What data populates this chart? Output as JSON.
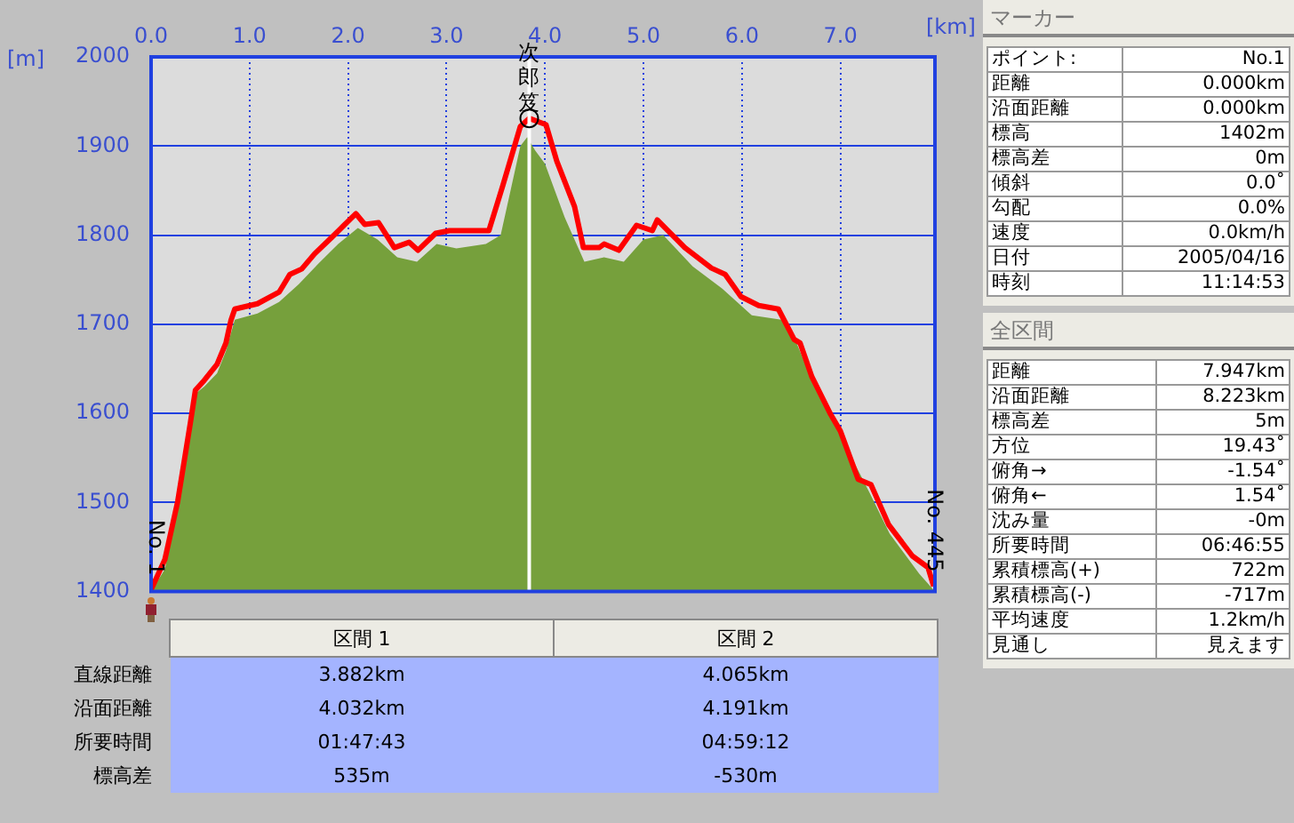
{
  "chart_data": [
    {
      "type": "line",
      "xlabel": "[km]",
      "ylabel": "[m]",
      "xlim": [
        0,
        7.96
      ],
      "ylim": [
        1400,
        2000
      ],
      "xticks": [
        {
          "value": 0,
          "label": "0.0"
        },
        {
          "value": 1,
          "label": "1.0"
        },
        {
          "value": 2,
          "label": "2.0"
        },
        {
          "value": 3,
          "label": "3.0"
        },
        {
          "value": 4,
          "label": "4.0"
        },
        {
          "value": 5,
          "label": "5.0"
        },
        {
          "value": 6,
          "label": "6.0"
        },
        {
          "value": 7,
          "label": "7.0"
        }
      ],
      "yticks": [
        1400,
        1500,
        1600,
        1700,
        1800,
        1900,
        2000
      ],
      "grid": true,
      "legend": false,
      "marker": "none",
      "series": [
        {
          "type": "area",
          "color": "#76a03c",
          "x": [
            0,
            0.14,
            0.27,
            0.4,
            0.45,
            0.54,
            0.67,
            0.76,
            0.85,
            1.08,
            1.3,
            1.5,
            1.7,
            1.9,
            2.1,
            2.3,
            2.5,
            2.7,
            2.9,
            3.1,
            3.4,
            3.55,
            3.65,
            3.75,
            3.82,
            3.9,
            4.0,
            4.2,
            4.4,
            4.6,
            4.8,
            5.0,
            5.2,
            5.5,
            5.8,
            6.1,
            6.4,
            6.55,
            6.7,
            7.0,
            7.3,
            7.5,
            7.8,
            7.96
          ],
          "values": [
            1400,
            1425,
            1495,
            1585,
            1622,
            1630,
            1645,
            1670,
            1705,
            1712,
            1725,
            1745,
            1768,
            1790,
            1808,
            1795,
            1775,
            1770,
            1790,
            1785,
            1790,
            1800,
            1850,
            1900,
            1910,
            1895,
            1880,
            1820,
            1770,
            1775,
            1770,
            1795,
            1800,
            1765,
            1740,
            1710,
            1705,
            1680,
            1640,
            1575,
            1510,
            1465,
            1420,
            1400
          ]
        },
        {
          "type": "line",
          "color": "#ff0000",
          "x": [
            0,
            0.14,
            0.27,
            0.4,
            0.45,
            0.54,
            0.67,
            0.76,
            0.81,
            0.85,
            1.08,
            1.3,
            1.41,
            1.53,
            1.66,
            1.84,
            1.95,
            2.08,
            2.17,
            2.31,
            2.47,
            2.62,
            2.71,
            2.89,
            3.03,
            3.43,
            3.52,
            3.57,
            3.75,
            3.84,
            4.01,
            4.12,
            4.3,
            4.39,
            4.55,
            4.6,
            4.75,
            4.93,
            5.09,
            5.14,
            5.42,
            5.69,
            5.83,
            5.99,
            6.17,
            6.37,
            6.53,
            6.59,
            6.71,
            6.9,
            7.0,
            7.18,
            7.31,
            7.49,
            7.73,
            7.89,
            7.947
          ],
          "values": [
            1402,
            1436,
            1501,
            1590,
            1626,
            1637,
            1655,
            1679,
            1704,
            1717,
            1723,
            1736,
            1756,
            1762,
            1779,
            1798,
            1810,
            1824,
            1812,
            1814,
            1786,
            1792,
            1783,
            1802,
            1805,
            1805,
            1837,
            1855,
            1922,
            1931,
            1924,
            1883,
            1832,
            1786,
            1786,
            1790,
            1783,
            1811,
            1805,
            1817,
            1786,
            1763,
            1756,
            1731,
            1721,
            1717,
            1683,
            1679,
            1641,
            1599,
            1580,
            1526,
            1520,
            1475,
            1440,
            1427,
            1406
          ]
        }
      ],
      "ref_lines": [
        {
          "axis": "x",
          "value": 3.84,
          "color": "#ffffff"
        }
      ],
      "annotations": [
        {
          "text": "次郎笈",
          "x": 3.84,
          "y": 1931
        },
        {
          "text": "No. 1",
          "x": 0,
          "y": 1402
        },
        {
          "text": "No. 445",
          "x": 7.947,
          "y": 1406
        }
      ]
    },
    {
      "type": "other",
      "annotations": [
        "区間 1",
        "区間 2",
        "直線距離",
        "3.882km",
        "4.065km",
        "沿面距離",
        "4.032km",
        "4.191km",
        "所要時間",
        "01:47:43",
        "04:59:12",
        "標高差",
        "535m",
        "-530m"
      ]
    },
    {
      "type": "other",
      "title": "マーカー",
      "annotations": [
        "ポイント:",
        "No.1",
        "距離",
        "0.000km",
        "沿面距離",
        "0.000km",
        "標高",
        "1402m",
        "標高差",
        "0m",
        "傾斜",
        "0.0˚",
        "勾配",
        "0.0%",
        "速度",
        "0.0km/h",
        "日付",
        "2005/04/16",
        "時刻",
        "11:14:53"
      ]
    },
    {
      "type": "other",
      "title": "全区間",
      "annotations": [
        "距離",
        "7.947km",
        "沿面距離",
        "8.223km",
        "標高差",
        "5m",
        "方位",
        "19.43˚",
        "俯角→",
        "-1.54˚",
        "俯角←",
        "1.54˚",
        "沈み量",
        "-0m",
        "所要時間",
        "06:46:55",
        "累積標高(+)",
        "722m",
        "累積標高(-)",
        "-717m",
        "平均速度",
        "1.2km/h",
        "見通し",
        "見えます"
      ]
    }
  ]
}
